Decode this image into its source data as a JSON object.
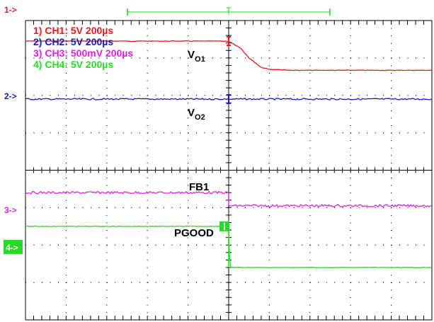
{
  "chart_data": {
    "type": "line",
    "title": "",
    "xlabel": "",
    "ylabel": "",
    "grid": true,
    "time_base": "200µs",
    "grid_divisions": {
      "horizontal": 10,
      "vertical": 8
    },
    "legend": {
      "placement": "top-left",
      "entries": [
        {
          "label": "1) CH1: 5V 200µs",
          "color": "#e8191c"
        },
        {
          "label": "2) CH2: 5V 200µs",
          "color": "#1a1ab8"
        },
        {
          "label": "3) CH3: 500mV 200µs",
          "color": "#e020e0"
        },
        {
          "label": "4) CH4: 5V 200µs",
          "color": "#22dd22"
        }
      ]
    },
    "signal_labels": {
      "vo1": {
        "main": "V",
        "sub": "O1"
      },
      "vo2": {
        "main": "V",
        "sub": "O2"
      },
      "fb1": "FB1",
      "pgood": "PGOOD"
    },
    "channel_markers": [
      {
        "text": "1->",
        "color": "#e8191c",
        "div": 4.3
      },
      {
        "text": "2->",
        "color": "#1a1ab8",
        "div": 2.0
      },
      {
        "text": "3->",
        "color": "#e020e0",
        "div": -1.05
      },
      {
        "text": "4->",
        "color": "#22dd22",
        "div": -2.05,
        "filled": true
      }
    ],
    "x_unit": "div",
    "y_unit": "div",
    "xlim": [
      -5,
      5
    ],
    "ylim": [
      -4,
      4
    ],
    "trigger_div": 0,
    "series": [
      {
        "key": "ch1",
        "color": "#e8191c",
        "points": [
          [
            -5,
            3.45
          ],
          [
            0,
            3.45
          ],
          [
            0.3,
            3.25
          ],
          [
            0.5,
            3.0
          ],
          [
            0.8,
            2.75
          ],
          [
            1.0,
            2.7
          ],
          [
            1.6,
            2.67
          ],
          [
            5,
            2.67
          ]
        ]
      },
      {
        "key": "ch2",
        "color": "#1a1ab8",
        "points": [
          [
            -5,
            1.9
          ],
          [
            5,
            1.9
          ]
        ]
      },
      {
        "key": "ch3",
        "color": "#e020e0",
        "points": [
          [
            -5,
            -0.6
          ],
          [
            0,
            -0.6
          ],
          [
            0,
            -0.95
          ],
          [
            5,
            -0.95
          ]
        ]
      },
      {
        "key": "ch4",
        "color": "#22dd22",
        "points": [
          [
            -5,
            -1.5
          ],
          [
            0,
            -1.5
          ],
          [
            0.02,
            -2.3
          ],
          [
            0.05,
            -2.6
          ],
          [
            5,
            -2.6
          ]
        ]
      }
    ]
  }
}
